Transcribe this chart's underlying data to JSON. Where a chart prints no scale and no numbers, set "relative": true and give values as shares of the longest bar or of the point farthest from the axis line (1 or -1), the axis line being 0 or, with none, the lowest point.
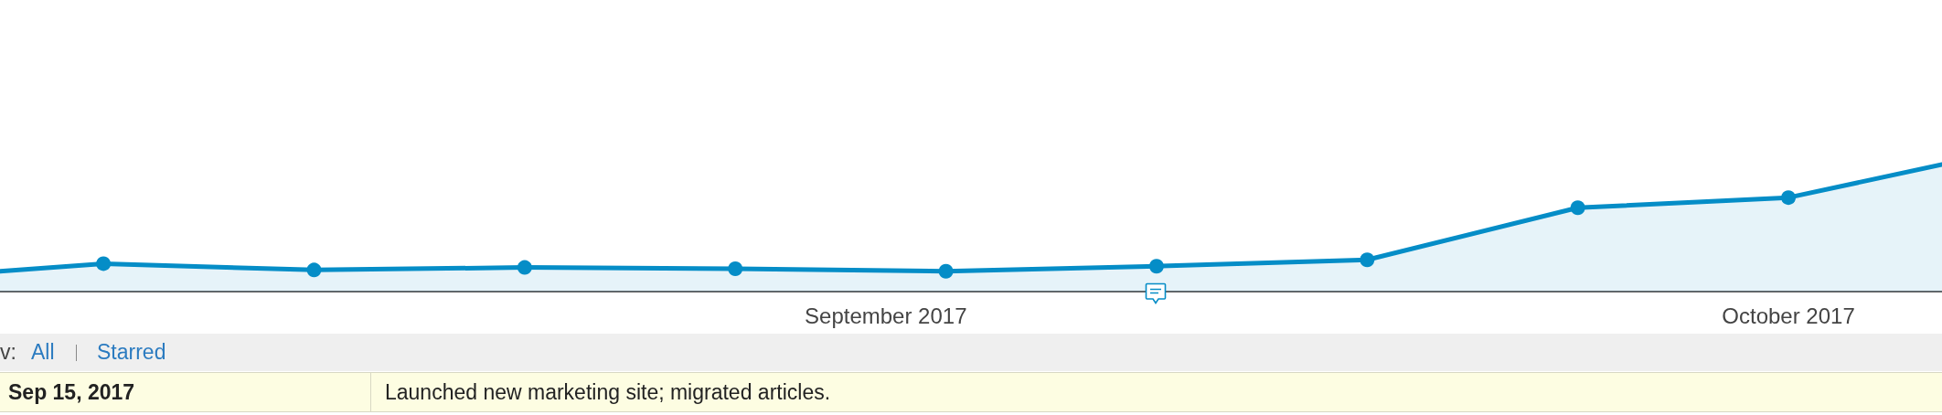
{
  "chart_data": {
    "type": "area",
    "relative": true,
    "x": [
      "2017-08-02T13:30",
      "2017-08-06",
      "2017-08-13",
      "2017-08-20",
      "2017-08-27",
      "2017-09-03",
      "2017-09-10",
      "2017-09-17",
      "2017-09-24",
      "2017-10-01",
      "2017-10-06T02:30"
    ],
    "series": [
      {
        "color": "#058dc7",
        "values": [
          0.16,
          0.22,
          0.17,
          0.19,
          0.18,
          0.16,
          0.2,
          0.25,
          0.66,
          0.74,
          1
        ]
      }
    ],
    "xlim": [
      "2017-08-02T13:30",
      "2017-10-06T02:30"
    ],
    "xticks": [
      {
        "value": "2017-09-01",
        "label": "September 2017"
      },
      {
        "value": "2017-10-01",
        "label": "October 2017"
      }
    ],
    "marker": "circle",
    "annotations": [
      "v:",
      "All",
      "Starred",
      "Sep 15, 2017",
      "Launched new marketing site; migrated articles."
    ]
  }
}
